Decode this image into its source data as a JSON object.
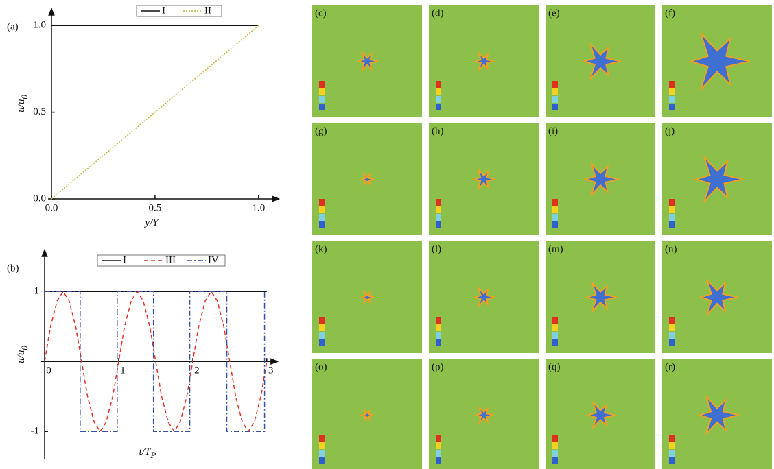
{
  "chart_data": [
    {
      "type": "line",
      "panel_label": "(a)",
      "x_label": "y/Y",
      "y_label": "u/u",
      "y_label_sub": "0",
      "xlim": [
        0,
        1.1
      ],
      "ylim": [
        0,
        1.1
      ],
      "xticks": [
        {
          "value": 0,
          "label": "0.0"
        },
        {
          "value": 0.5,
          "label": "0.5"
        },
        {
          "value": 1,
          "label": "1.0"
        }
      ],
      "yticks": [
        {
          "value": 0,
          "label": "0.0"
        },
        {
          "value": 0.5,
          "label": "0.5"
        },
        {
          "value": 1,
          "label": "1.0"
        }
      ],
      "series": [
        {
          "name": "I",
          "color": "#111111",
          "dash": "solid",
          "x": [
            0,
            1
          ],
          "values": [
            1,
            1
          ]
        },
        {
          "name": "II",
          "color": "#c9b23a",
          "dash": "dotted",
          "x": [
            0,
            1
          ],
          "values": [
            0,
            1
          ]
        }
      ]
    },
    {
      "type": "line",
      "panel_label": "(b)",
      "x_label": "t/T",
      "x_label_sub": "P",
      "y_label": "u/u",
      "y_label_sub": "0",
      "xlim": [
        0,
        3.15
      ],
      "ylim": [
        -1.4,
        1.6
      ],
      "xticks": [
        0,
        1,
        2,
        3
      ],
      "yticks": [
        -1,
        1
      ],
      "series": [
        {
          "name": "I",
          "color": "#111111",
          "dash": "solid",
          "x": [
            0,
            3
          ],
          "values": [
            1,
            1
          ]
        },
        {
          "name": "III",
          "color": "#e0302a",
          "dash": "dashed",
          "x": [
            0,
            0.08,
            0.17,
            0.25,
            0.33,
            0.42,
            0.5,
            0.58,
            0.67,
            0.75,
            0.83,
            0.92,
            1,
            1.08,
            1.17,
            1.25,
            1.33,
            1.42,
            1.5,
            1.58,
            1.67,
            1.75,
            1.83,
            1.92,
            2,
            2.08,
            2.17,
            2.25,
            2.33,
            2.42,
            2.5,
            2.58,
            2.67,
            2.75,
            2.83,
            2.92,
            3
          ],
          "values": [
            0,
            0.5,
            0.87,
            1,
            0.87,
            0.5,
            0,
            -0.5,
            -0.87,
            -1,
            -0.87,
            -0.5,
            0,
            0.5,
            0.87,
            1,
            0.87,
            0.5,
            0,
            -0.5,
            -0.87,
            -1,
            -0.87,
            -0.5,
            0,
            0.5,
            0.87,
            1,
            0.87,
            0.5,
            0,
            -0.5,
            -0.87,
            -1,
            -0.87,
            -0.5,
            0
          ]
        },
        {
          "name": "IV",
          "color": "#3a4fa0",
          "dash": "dashdot",
          "x": [
            0,
            0.48,
            0.48,
            0.98,
            0.98,
            1.47,
            1.47,
            1.96,
            1.96,
            2.46,
            2.46,
            2.97,
            2.97
          ],
          "values": [
            1,
            1,
            -1,
            -1,
            1,
            1,
            -1,
            -1,
            1,
            1,
            -1,
            -1,
            1
          ]
        }
      ]
    }
  ],
  "panels": [
    "(c)",
    "(d)",
    "(e)",
    "(f)",
    "(g)",
    "(h)",
    "(i)",
    "(j)",
    "(k)",
    "(l)",
    "(m)",
    "(n)",
    "(o)",
    "(p)",
    "(q)",
    "(r)"
  ]
}
